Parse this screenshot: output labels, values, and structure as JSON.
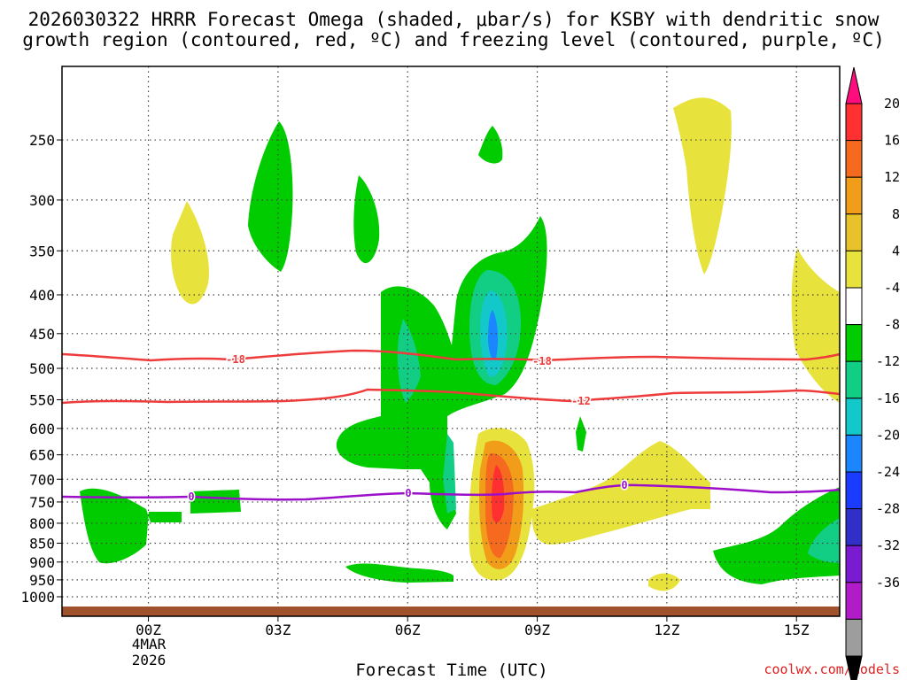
{
  "chart_data": {
    "type": "heatmap",
    "title_line1": "2026030322 HRRR Forecast Omega (shaded, μbar/s) for KSBY with dendritic snow",
    "title_line2": "growth region (contoured, red, ºC) and freezing level (contoured, purple, ºC)",
    "xlabel": "Forecast Time (UTC)",
    "x_tick_labels": [
      "00Z",
      "03Z",
      "06Z",
      "09Z",
      "12Z",
      "15Z"
    ],
    "x_tick_hours": [
      0,
      3,
      6,
      9,
      12,
      15
    ],
    "x_date_line1": "4MAR",
    "x_date_line2": "2026",
    "xlim_hours": [
      -2,
      16
    ],
    "y_tick_labels": [
      "250",
      "300",
      "350",
      "400",
      "450",
      "500",
      "550",
      "600",
      "650",
      "700",
      "750",
      "800",
      "850",
      "900",
      "950",
      "1000"
    ],
    "y_axis": "pressure (mb), log scale",
    "ylim_mb": [
      200,
      1030
    ],
    "colorbar": {
      "labels": [
        "20",
        "16",
        "12",
        "8",
        "4",
        "-4",
        "-8",
        "-12",
        "-16",
        "-20",
        "-24",
        "-28",
        "-32",
        "-36"
      ],
      "colors": [
        "#ff0d7e",
        "#ff3030",
        "#f56a1e",
        "#f29d19",
        "#e8c22b",
        "#e8e23c",
        "#ffffff",
        "#00cc00",
        "#12ce84",
        "#13c8c8",
        "#1b86ff",
        "#1b3bff",
        "#3030c8",
        "#7a1bd2",
        "#b21bc8",
        "#9d9d9d",
        "#000000"
      ]
    },
    "contours": {
      "dendritic": [
        {
          "label": "-18",
          "color": "#ee3b3b"
        },
        {
          "label": "-12",
          "color": "#ee3b3b"
        }
      ],
      "freezing": {
        "label": "0",
        "color": "#9b10c8"
      }
    },
    "ground_color": "#a0522d",
    "credit": "coolwx.com/models"
  }
}
